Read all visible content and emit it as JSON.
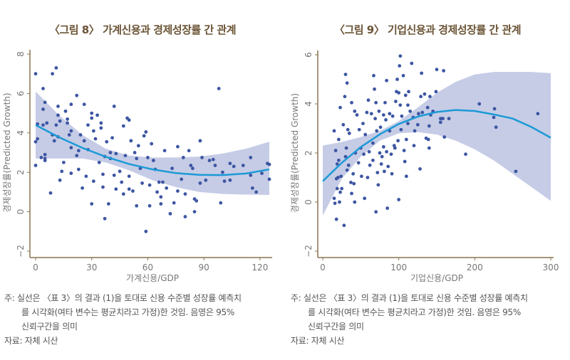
{
  "colors": {
    "title": "#6b5436",
    "axis": "#8a7350",
    "tick_label": "#777777",
    "point": "#3d56a3",
    "band": "#c6cce6",
    "fit_line": "#1b9ad6"
  },
  "chart_data": [
    {
      "type": "scatter",
      "title": "〈그림 8〉 가계신용과 경제성장률 간 관계",
      "xlabel": "가계신용/GDP",
      "ylabel": "경제성장률(Predicted Growth)",
      "xlim": [
        0,
        125
      ],
      "ylim": [
        -2,
        8
      ],
      "xticks": [
        0,
        30,
        60,
        90,
        120
      ],
      "yticks": [
        -2,
        0,
        2,
        4,
        6,
        8
      ],
      "grid": false,
      "points": [
        [
          0,
          7.0
        ],
        [
          0,
          3.55
        ],
        [
          0,
          2.35
        ],
        [
          1,
          3.7
        ],
        [
          1,
          4.45
        ],
        [
          4,
          6.25
        ],
        [
          4,
          5.2
        ],
        [
          4,
          4.4
        ],
        [
          5,
          5.55
        ],
        [
          5,
          2.9
        ],
        [
          5,
          2.7
        ],
        [
          5,
          2.6
        ],
        [
          6,
          4.5
        ],
        [
          3,
          2.75
        ],
        [
          8,
          0.95
        ],
        [
          9,
          7.0
        ],
        [
          11,
          7.3
        ],
        [
          9,
          3.9
        ],
        [
          10,
          3.6
        ],
        [
          12,
          5.35
        ],
        [
          12,
          4.9
        ],
        [
          13,
          4.6
        ],
        [
          11,
          4.4
        ],
        [
          12,
          3.8
        ],
        [
          14,
          2.05
        ],
        [
          13,
          1.6
        ],
        [
          15,
          2.5
        ],
        [
          16,
          5.1
        ],
        [
          17,
          4.7
        ],
        [
          17,
          4.5
        ],
        [
          18,
          3.9
        ],
        [
          19,
          5.45
        ],
        [
          19,
          4.1
        ],
        [
          19,
          3.25
        ],
        [
          19,
          1.95
        ],
        [
          22,
          5.9
        ],
        [
          22,
          2.85
        ],
        [
          23,
          3.1
        ],
        [
          23,
          2.15
        ],
        [
          24,
          3.9
        ],
        [
          25,
          1.2
        ],
        [
          26,
          5.45
        ],
        [
          26,
          3.6
        ],
        [
          27,
          1.8
        ],
        [
          28,
          3.15
        ],
        [
          28,
          4.4
        ],
        [
          30,
          4.75
        ],
        [
          30,
          5.0
        ],
        [
          30,
          0.4
        ],
        [
          31,
          4.1
        ],
        [
          31,
          1.55
        ],
        [
          32,
          3.7
        ],
        [
          33,
          4.9
        ],
        [
          34,
          2.5
        ],
        [
          35,
          4.5
        ],
        [
          35,
          4.25
        ],
        [
          36,
          1.25
        ],
        [
          36,
          1.9
        ],
        [
          37,
          2.8
        ],
        [
          37,
          -0.35
        ],
        [
          38,
          3.55
        ],
        [
          39,
          0.4
        ],
        [
          40,
          3.0
        ],
        [
          40,
          2.7
        ],
        [
          41,
          3.75
        ],
        [
          42,
          5.35
        ],
        [
          42,
          1.85
        ],
        [
          43,
          1.15
        ],
        [
          43,
          2.95
        ],
        [
          45,
          2.05
        ],
        [
          46,
          1.5
        ],
        [
          47,
          0.9
        ],
        [
          47,
          4.35
        ],
        [
          48,
          2.85
        ],
        [
          49,
          4.75
        ],
        [
          50,
          4.65
        ],
        [
          50,
          1.8
        ],
        [
          50,
          1.15
        ],
        [
          51,
          3.6
        ],
        [
          52,
          1.05
        ],
        [
          53,
          3.0
        ],
        [
          54,
          2.7
        ],
        [
          54,
          0.3
        ],
        [
          55,
          3.35
        ],
        [
          56,
          2.2
        ],
        [
          57,
          1.45
        ],
        [
          58,
          3.85
        ],
        [
          59,
          4.05
        ],
        [
          59,
          -1.0
        ],
        [
          60,
          2.75
        ],
        [
          61,
          1.35
        ],
        [
          61,
          0.3
        ],
        [
          62,
          3.45
        ],
        [
          63,
          2.6
        ],
        [
          64,
          2.15
        ],
        [
          65,
          1.0
        ],
        [
          66,
          1.5
        ],
        [
          67,
          0.75
        ],
        [
          67,
          0.4
        ],
        [
          68,
          1.5
        ],
        [
          69,
          3.1
        ],
        [
          70,
          1.2
        ],
        [
          72,
          -0.1
        ],
        [
          73,
          2.2
        ],
        [
          74,
          0.45
        ],
        [
          76,
          3.3
        ],
        [
          76,
          1.05
        ],
        [
          78,
          1.65
        ],
        [
          79,
          2.75
        ],
        [
          80,
          0.9
        ],
        [
          80,
          -0.25
        ],
        [
          82,
          3.1
        ],
        [
          83,
          2.35
        ],
        [
          84,
          2.2
        ],
        [
          85,
          0.65
        ],
        [
          85,
          0.0
        ],
        [
          86,
          0.55
        ],
        [
          88,
          3.6
        ],
        [
          88,
          1.45
        ],
        [
          89,
          2.75
        ],
        [
          91,
          1.6
        ],
        [
          93,
          2.6
        ],
        [
          95,
          2.65
        ],
        [
          96,
          2.35
        ],
        [
          98,
          6.25
        ],
        [
          99,
          0.45
        ],
        [
          100,
          2.0
        ],
        [
          101,
          1.55
        ],
        [
          104,
          2.45
        ],
        [
          104,
          1.6
        ],
        [
          106,
          2.3
        ],
        [
          111,
          2.35
        ],
        [
          115,
          2.75
        ],
        [
          115,
          1.85
        ],
        [
          116,
          1.2
        ],
        [
          118,
          1.0
        ],
        [
          121,
          1.95
        ],
        [
          124,
          2.45
        ],
        [
          125,
          2.4
        ],
        [
          125,
          1.65
        ]
      ],
      "fit": {
        "x": [
          0,
          12.5,
          25,
          37.5,
          50,
          62.5,
          75,
          87.5,
          100,
          112.5,
          125
        ],
        "y": [
          4.4,
          3.78,
          3.24,
          2.79,
          2.42,
          2.15,
          1.96,
          1.87,
          1.86,
          1.94,
          2.15
        ]
      },
      "ci95": {
        "x": [
          0,
          12.5,
          25,
          37.5,
          50,
          62.5,
          75,
          87.5,
          100,
          112.5,
          125
        ],
        "lower": [
          2.7,
          2.7,
          2.7,
          2.5,
          2.1,
          1.6,
          1.25,
          1.0,
          0.9,
          0.87,
          0.85
        ],
        "upper": [
          6.1,
          4.9,
          3.9,
          3.2,
          2.85,
          2.75,
          2.75,
          2.8,
          2.95,
          3.2,
          3.55
        ]
      }
    },
    {
      "type": "scatter",
      "title": "〈그림 9〉 기업신용과 경제성장률 간 관계",
      "xlabel": "기업신용/GDP",
      "ylabel": "경제성장률(Predicted Growth)",
      "xlim": [
        0,
        300
      ],
      "ylim": [
        -2,
        6
      ],
      "xticks": [
        0,
        100,
        200,
        300
      ],
      "yticks": [
        -2,
        0,
        2,
        4,
        6
      ],
      "grid": false,
      "points": [
        [
          15,
          2.9
        ],
        [
          15,
          0.15
        ],
        [
          16,
          -0.05
        ],
        [
          17,
          2.1
        ],
        [
          18,
          0.95
        ],
        [
          18,
          -0.7
        ],
        [
          19,
          1.55
        ],
        [
          19,
          0.55
        ],
        [
          20,
          1.0
        ],
        [
          21,
          2.55
        ],
        [
          21,
          1.7
        ],
        [
          22,
          0.0
        ],
        [
          23,
          3.85
        ],
        [
          23,
          0.4
        ],
        [
          24,
          1.05
        ],
        [
          25,
          0.55
        ],
        [
          27,
          3.15
        ],
        [
          28,
          -0.95
        ],
        [
          29,
          4.3
        ],
        [
          30,
          5.2
        ],
        [
          30,
          1.85
        ],
        [
          31,
          2.2
        ],
        [
          32,
          4.85
        ],
        [
          32,
          1.3
        ],
        [
          33,
          2.95
        ],
        [
          34,
          1.5
        ],
        [
          35,
          2.8
        ],
        [
          37,
          0.8
        ],
        [
          38,
          4.05
        ],
        [
          38,
          0.35
        ],
        [
          40,
          1.15
        ],
        [
          41,
          0.75
        ],
        [
          42,
          3.7
        ],
        [
          42,
          0.0
        ],
        [
          43,
          2.0
        ],
        [
          45,
          3.55
        ],
        [
          47,
          1.6
        ],
        [
          48,
          2.95
        ],
        [
          50,
          2.2
        ],
        [
          51,
          1.05
        ],
        [
          53,
          3.2
        ],
        [
          54,
          1.95
        ],
        [
          55,
          0.15
        ],
        [
          56,
          2.75
        ],
        [
          58,
          3.65
        ],
        [
          59,
          1.0
        ],
        [
          60,
          4.15
        ],
        [
          61,
          2.05
        ],
        [
          62,
          1.5
        ],
        [
          64,
          3.6
        ],
        [
          66,
          2.4
        ],
        [
          66,
          1.7
        ],
        [
          67,
          5.15
        ],
        [
          68,
          4.6
        ],
        [
          69,
          3.4
        ],
        [
          70,
          4.05
        ],
        [
          70,
          -0.4
        ],
        [
          71,
          2.9
        ],
        [
          72,
          1.2
        ],
        [
          73,
          0.7
        ],
        [
          74,
          3.7
        ],
        [
          75,
          2.0
        ],
        [
          76,
          3.05
        ],
        [
          77,
          1.55
        ],
        [
          78,
          1.85
        ],
        [
          80,
          3.55
        ],
        [
          80,
          2.25
        ],
        [
          81,
          1.25
        ],
        [
          82,
          4.05
        ],
        [
          83,
          3.35
        ],
        [
          84,
          4.95
        ],
        [
          84,
          2.05
        ],
        [
          85,
          -0.25
        ],
        [
          86,
          1.45
        ],
        [
          88,
          3.6
        ],
        [
          88,
          2.9
        ],
        [
          90,
          1.95
        ],
        [
          91,
          1.15
        ],
        [
          92,
          3.5
        ],
        [
          94,
          2.3
        ],
        [
          95,
          2.2
        ],
        [
          96,
          4.1
        ],
        [
          97,
          4.5
        ],
        [
          98,
          5.0
        ],
        [
          99,
          2.5
        ],
        [
          100,
          4.45
        ],
        [
          100,
          0.1
        ],
        [
          101,
          5.55
        ],
        [
          102,
          5.95
        ],
        [
          102,
          3.95
        ],
        [
          103,
          2.95
        ],
        [
          104,
          3.5
        ],
        [
          106,
          5.15
        ],
        [
          107,
          2.1
        ],
        [
          108,
          1.65
        ],
        [
          109,
          4.35
        ],
        [
          110,
          1.05
        ],
        [
          110,
          2.55
        ],
        [
          112,
          3.95
        ],
        [
          112,
          3.2
        ],
        [
          113,
          4.5
        ],
        [
          115,
          3.7
        ],
        [
          117,
          5.65
        ],
        [
          119,
          3.45
        ],
        [
          120,
          2.3
        ],
        [
          121,
          2.9
        ],
        [
          125,
          3.15
        ],
        [
          126,
          3.6
        ],
        [
          128,
          1.35
        ],
        [
          129,
          4.3
        ],
        [
          130,
          5.25
        ],
        [
          131,
          3.65
        ],
        [
          134,
          4.4
        ],
        [
          136,
          2.6
        ],
        [
          138,
          3.85
        ],
        [
          139,
          2.55
        ],
        [
          140,
          3.1
        ],
        [
          140,
          2.2
        ],
        [
          141,
          4.3
        ],
        [
          142,
          3.55
        ],
        [
          145,
          3.7
        ],
        [
          149,
          4.5
        ],
        [
          150,
          5.4
        ],
        [
          155,
          3.4
        ],
        [
          155,
          3.25
        ],
        [
          158,
          3.4
        ],
        [
          159,
          5.35
        ],
        [
          160,
          2.65
        ],
        [
          166,
          3.4
        ],
        [
          188,
          1.95
        ],
        [
          206,
          4.0
        ],
        [
          225,
          3.45
        ],
        [
          226,
          3.8
        ],
        [
          228,
          3.05
        ],
        [
          254,
          1.25
        ],
        [
          283,
          3.6
        ]
      ],
      "fit": {
        "x": [
          0,
          25,
          50,
          75,
          100,
          125,
          150,
          175,
          200,
          225,
          250,
          275,
          300
        ],
        "y": [
          0.85,
          1.6,
          2.24,
          2.76,
          3.18,
          3.48,
          3.67,
          3.75,
          3.71,
          3.57,
          3.4,
          3.05,
          2.62
        ]
      },
      "ci95": {
        "x": [
          0,
          25,
          50,
          75,
          100,
          125,
          150,
          175,
          200,
          225,
          250,
          275,
          300
        ],
        "lower": [
          -0.55,
          0.95,
          1.85,
          2.5,
          2.8,
          2.85,
          2.75,
          2.5,
          2.15,
          1.7,
          1.15,
          0.6,
          0.05
        ],
        "upper": [
          2.3,
          2.45,
          2.65,
          2.9,
          3.3,
          3.85,
          4.45,
          4.9,
          5.2,
          5.3,
          5.3,
          5.3,
          5.25
        ]
      }
    }
  ],
  "notes": {
    "line1": "주: 실선은 〈표 3〉의 결과 (1)을 토대로 신용 수준별 성장률 예측치",
    "line2": "를 시각화(여타 변수는 평균치라고 가정)한 것임. 음영은 95%",
    "line3": "신뢰구간을 의미",
    "source": "자료: 자체 시산"
  }
}
